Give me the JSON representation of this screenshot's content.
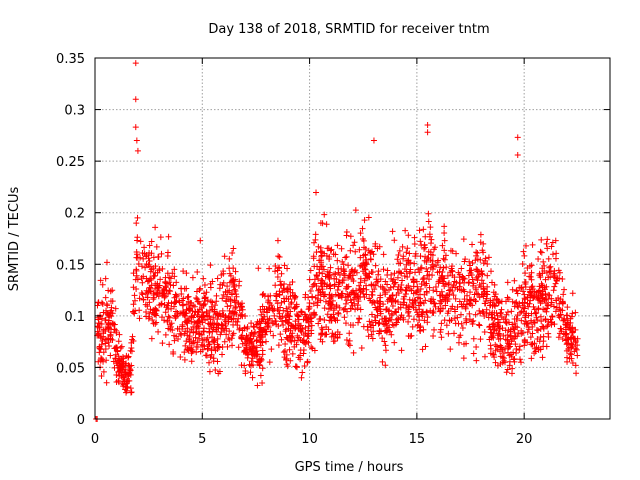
{
  "chart_data": {
    "type": "scatter",
    "title": "Day 138 of 2018, SRMTID for receiver tntm",
    "xlabel": "GPS time / hours",
    "ylabel": "SRMTID / TECUs",
    "xlim": [
      0,
      24
    ],
    "ylim": [
      0,
      0.35
    ],
    "x_ticks": [
      0,
      5,
      10,
      15,
      20
    ],
    "x_tick_labels": [
      "0",
      "5",
      "10",
      "15",
      "20"
    ],
    "y_ticks": [
      0,
      0.05,
      0.1,
      0.15,
      0.2,
      0.25,
      0.3,
      0.35
    ],
    "y_tick_labels": [
      "0",
      "0.05",
      "0.1",
      "0.15",
      "0.2",
      "0.25",
      "0.3",
      "0.35"
    ],
    "grid": true,
    "marker": "+",
    "color": "#ff0000",
    "envelope": {
      "x": [
        0.1,
        0.3,
        0.5,
        0.8,
        1.0,
        1.2,
        1.4,
        1.7,
        1.9,
        2.2,
        2.6,
        3.0,
        3.5,
        4.0,
        4.5,
        5.0,
        5.5,
        6.0,
        6.5,
        7.0,
        7.5,
        8.0,
        8.5,
        9.0,
        9.5,
        10.0,
        10.5,
        11.0,
        11.5,
        12.0,
        12.5,
        13.0,
        13.5,
        14.0,
        14.5,
        15.0,
        15.5,
        16.0,
        16.5,
        17.0,
        17.5,
        18.0,
        18.5,
        19.0,
        19.5,
        20.0,
        20.5,
        21.0,
        21.5,
        22.0,
        22.5
      ],
      "mean": [
        0.09,
        0.08,
        0.085,
        0.09,
        0.07,
        0.05,
        0.04,
        0.05,
        0.16,
        0.13,
        0.13,
        0.12,
        0.12,
        0.1,
        0.09,
        0.1,
        0.09,
        0.1,
        0.12,
        0.07,
        0.07,
        0.09,
        0.12,
        0.1,
        0.08,
        0.1,
        0.14,
        0.12,
        0.12,
        0.13,
        0.13,
        0.12,
        0.1,
        0.12,
        0.13,
        0.12,
        0.14,
        0.13,
        0.12,
        0.11,
        0.12,
        0.13,
        0.1,
        0.08,
        0.08,
        0.12,
        0.1,
        0.12,
        0.13,
        0.08,
        0.07
      ],
      "spread": [
        0.03,
        0.04,
        0.04,
        0.04,
        0.035,
        0.02,
        0.02,
        0.03,
        0.06,
        0.05,
        0.05,
        0.05,
        0.05,
        0.04,
        0.04,
        0.05,
        0.04,
        0.05,
        0.05,
        0.03,
        0.03,
        0.04,
        0.05,
        0.05,
        0.04,
        0.04,
        0.06,
        0.05,
        0.05,
        0.06,
        0.06,
        0.05,
        0.05,
        0.05,
        0.05,
        0.05,
        0.06,
        0.05,
        0.05,
        0.05,
        0.06,
        0.06,
        0.05,
        0.04,
        0.04,
        0.06,
        0.05,
        0.05,
        0.05,
        0.03,
        0.03
      ]
    },
    "highlights": [
      {
        "x": 1.9,
        "y": 0.345
      },
      {
        "x": 1.9,
        "y": 0.31
      },
      {
        "x": 1.9,
        "y": 0.283
      },
      {
        "x": 1.95,
        "y": 0.27
      },
      {
        "x": 2.0,
        "y": 0.26
      },
      {
        "x": 13.0,
        "y": 0.27
      },
      {
        "x": 15.5,
        "y": 0.285
      },
      {
        "x": 15.5,
        "y": 0.278
      },
      {
        "x": 19.7,
        "y": 0.273
      },
      {
        "x": 19.7,
        "y": 0.256
      },
      {
        "x": 0.1,
        "y": 0.0
      },
      {
        "x": 0.05,
        "y": 0.0
      }
    ]
  }
}
